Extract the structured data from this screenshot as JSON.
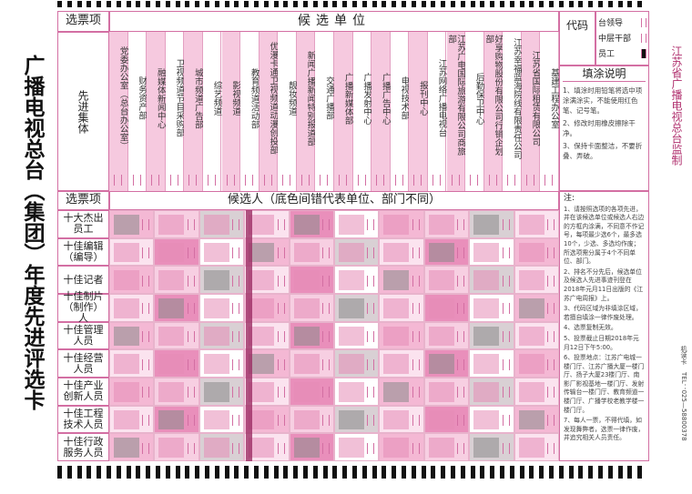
{
  "left_title": "广播电视总台（集团）年度先进评选卡",
  "right_text": "江苏省广播电视总台监制",
  "units_section": {
    "header_label": "选票项",
    "header_title": "候选单位",
    "row_label": "先进集体",
    "units": [
      "党委办公室（总台办公室）",
      "财务资产部",
      "融媒体新闻中心",
      "卫视频道节目采购部",
      "城市频道广告部",
      "综艺频道",
      "影视频道",
      "教育频道活动部",
      "优漫卡通卫视频道动漫创投部",
      "靓妆频道",
      "新闻广播新闻特别报道部",
      "交通广播部",
      "广播新媒体部",
      "广播发射中心",
      "广播广告中心",
      "电视技术部",
      "报刊中心",
      "江苏网络广播电视台",
      "江苏广电国际旅游有限公司商旅部",
      "后勤保卫中心",
      "好享购物股份有限公司行销企划部",
      "江苏幸福蓝海院线有限责任公司",
      "江苏省国际租赁有限公司",
      "基建工程办公室"
    ]
  },
  "code": {
    "label": "代码"
  },
  "staff_types": [
    "台领导",
    "中层干部",
    "员工"
  ],
  "fill_instructions": {
    "title": "填涂说明",
    "items": [
      "1、填涂时用铅笔将选中项涂满涂实，不能使用红色笔、记号笔。",
      "2、修改时用橡皮擦除干净。",
      "3、保持卡面整洁，不要折叠、弄破。"
    ]
  },
  "candidates_section": {
    "header_label": "选票项",
    "header_title": "候选人（底色间错代表单位、部门不同）",
    "rows": [
      "十大杰出员工",
      "十佳编辑（编导）",
      "十佳记者",
      "十佳制片（制作）人",
      "十佳管理人员",
      "十佳经营人员",
      "十佳产业创新人员",
      "十佳工程技术人员",
      "十佳行政服务人员"
    ]
  },
  "notes": {
    "title": "注:",
    "items": [
      "1、请按照选项的各项先进，并在该候选单位或候选人右边的方框内涂满，不同意不作记号，每项最少选6个，最多选10个，少选、多选均作废；所选项需分属于4个不同单位、部门。",
      "2、排名不分先后，候选单位及候选人先进事迹刊登在2018年元月11日出版的《江苏广电周报》上。",
      "3、代码区域为非填涂区域，若擅自填涂一律作废处理。",
      "4、选票复制无效。",
      "5、投票截止日期2018年元月12日下午5:00。",
      "6、投票地点：江苏广电城一楼门厅、江苏广播大厦一楼门厅、扬子大厦23楼门厅、南影厂影视基地一楼门厅、发射传输台一楼门厅、教育频道一楼门厅、广播学校老教学楼一楼门厅。",
      "7、每人一票，不得代填，如发现舞弊者，选票一律作废，并追究相关人员责任。"
    ]
  },
  "printer": {
    "tel": "TEL：025—58800378",
    "card": "机读卡"
  }
}
